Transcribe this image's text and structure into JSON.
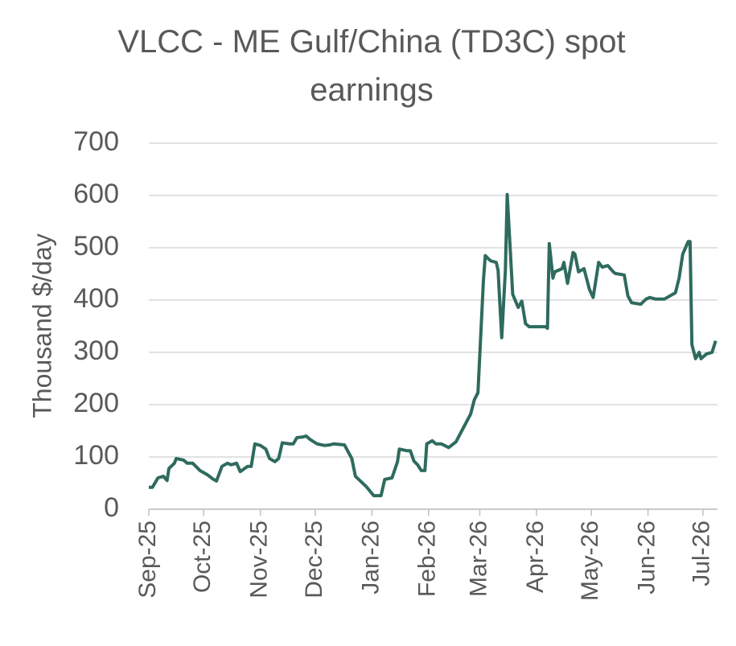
{
  "chart_data": {
    "type": "line",
    "title": "VLCC - ME Gulf/China (TD3C) spot earnings",
    "y_label": "Thousand $/day",
    "x": [
      0,
      2,
      5,
      8,
      10,
      11,
      14,
      15,
      19,
      21,
      24,
      28,
      32,
      35,
      37,
      40,
      43,
      45,
      48,
      50,
      54,
      56,
      58,
      61,
      64,
      66,
      69,
      71,
      73,
      77,
      79,
      81,
      84,
      86,
      88,
      92,
      96,
      99,
      101,
      107,
      111,
      113,
      119,
      123,
      127,
      129,
      133,
      136,
      137,
      141,
      143,
      145,
      147,
      149,
      151,
      152,
      155,
      157,
      160,
      164,
      168,
      171,
      176,
      178,
      180,
      183,
      184,
      186,
      187,
      190,
      191,
      193,
      195,
      196,
      199,
      202,
      204,
      206,
      208,
      217,
      218,
      219,
      221,
      222,
      226,
      227,
      229,
      232,
      233,
      235,
      238,
      241,
      243,
      246,
      248,
      251,
      254,
      255,
      260,
      262,
      264,
      269,
      272,
      274,
      277,
      282,
      285,
      288,
      290,
      292,
      295,
      296,
      297,
      299,
      301,
      302,
      305,
      308,
      310
    ],
    "series": [
      {
        "name": "TD3C",
        "color": "#2e6b5e",
        "values": [
          42,
          42,
          60,
          63,
          55,
          78,
          88,
          97,
          94,
          88,
          88,
          74,
          66,
          58,
          54,
          82,
          88,
          85,
          88,
          72,
          82,
          82,
          125,
          122,
          115,
          97,
          91,
          97,
          127,
          125,
          125,
          137,
          138,
          140,
          134,
          125,
          122,
          123,
          125,
          123,
          97,
          63,
          43,
          26,
          26,
          57,
          60,
          91,
          115,
          112,
          112,
          92,
          85,
          74,
          74,
          125,
          131,
          125,
          125,
          118,
          129,
          149,
          182,
          209,
          223,
          438,
          485,
          478,
          475,
          472,
          457,
          328,
          457,
          602,
          411,
          386,
          398,
          355,
          349,
          349,
          346,
          508,
          442,
          454,
          460,
          472,
          432,
          491,
          488,
          454,
          460,
          420,
          405,
          472,
          463,
          466,
          454,
          451,
          448,
          408,
          395,
          392,
          402,
          405,
          402,
          402,
          408,
          414,
          442,
          488,
          512,
          512,
          315,
          288,
          300,
          288,
          297,
          300,
          322
        ]
      }
    ],
    "xlim": [
      0,
      311
    ],
    "xticks": [
      {
        "value": 0,
        "label": "Sep-25"
      },
      {
        "value": 30,
        "label": "Oct-25"
      },
      {
        "value": 61,
        "label": "Nov-25"
      },
      {
        "value": 91,
        "label": "Dec-25"
      },
      {
        "value": 122,
        "label": "Jan-26"
      },
      {
        "value": 153,
        "label": "Feb-26"
      },
      {
        "value": 181,
        "label": "Mar-26"
      },
      {
        "value": 212,
        "label": "Apr-26"
      },
      {
        "value": 242,
        "label": "May-26"
      },
      {
        "value": 273,
        "label": "Jun-26"
      },
      {
        "value": 303,
        "label": "Jul-26"
      }
    ],
    "ylim": [
      0,
      700
    ],
    "yticks": [
      0,
      100,
      200,
      300,
      400,
      500,
      600,
      700
    ],
    "grid": true
  }
}
